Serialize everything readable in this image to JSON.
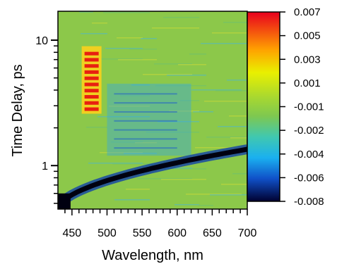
{
  "chart_data": {
    "type": "heatmap",
    "title": "",
    "xlabel": "Wavelength, nm",
    "ylabel": "Time Delay, ps",
    "xlim": [
      430,
      700
    ],
    "ylim": [
      0.45,
      17
    ],
    "yscale": "log",
    "grid": false,
    "x_ticks": [
      450,
      500,
      550,
      600,
      650,
      700
    ],
    "y_ticks": [
      1,
      10
    ],
    "colorbar": {
      "placement": "right",
      "range": [
        -0.008,
        0.007
      ],
      "tick_values": [
        0.007,
        0.005,
        0.003,
        0.001,
        -0.001,
        -0.002,
        -0.004,
        -0.006,
        -0.008
      ],
      "tick_labels": [
        "0.007",
        "0.005",
        "0.003",
        "0.001",
        "-0.001",
        "-0.002",
        "-0.004",
        "-0.006",
        "-0.008"
      ],
      "colors": [
        "#ff0000",
        "#ffff00",
        "#7ec850",
        "#00ffff",
        "#0000ff"
      ]
    },
    "features": [
      {
        "name": "positive band",
        "x_center": 478,
        "time_range": [
          2.8,
          8.5
        ],
        "value": 0.007
      },
      {
        "name": "negative chirp",
        "start": [
          430,
          0.45
        ],
        "end": [
          700,
          1.35
        ],
        "value": -0.008
      },
      {
        "name": "negative region",
        "x_range": [
          500,
          620
        ],
        "time_range": [
          1.2,
          4.5
        ],
        "value": -0.005
      }
    ]
  }
}
